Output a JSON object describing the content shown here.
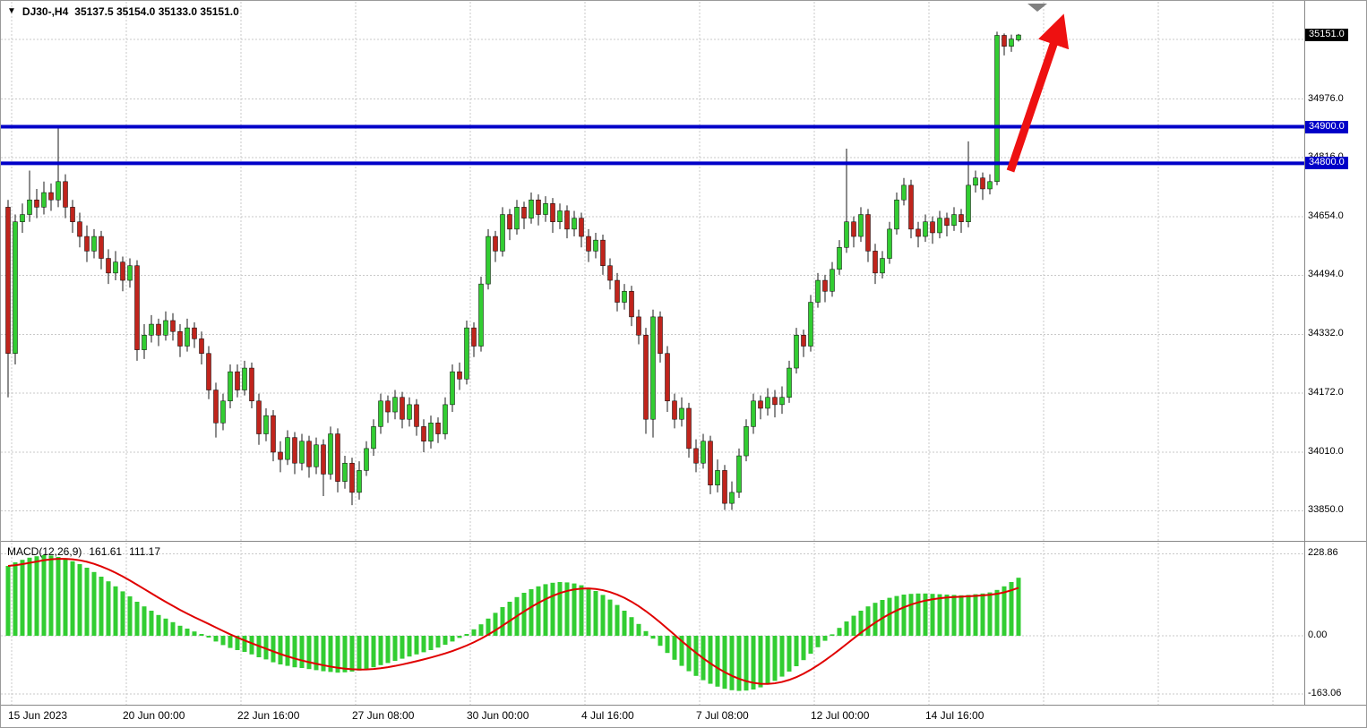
{
  "header": {
    "dropdown_icon": "▼",
    "symbol_period": "DJ30-,H4",
    "ohlc_text": "35137.5 35154.0 35133.0 35151.0"
  },
  "indicator": {
    "name": "MACD(12,26,9)",
    "value_main": "161.61",
    "value_signal": "111.17"
  },
  "colors": {
    "bull": "#32cd32",
    "bear": "#c0241c",
    "wick": "#1a1a1a",
    "body_outline": "#000000",
    "grid": "#c9c9c9",
    "hline": "#0000c8",
    "signal_line": "#e00000",
    "arrow": "#ee1111",
    "current_label_bg": "#000000",
    "level_label_bg": "#0000c8",
    "axis_text": "#000000",
    "separator": "#888888",
    "scroll_marker": "#808080",
    "background": "#ffffff"
  },
  "annotations": {
    "trend_arrow": {
      "shape": "arrow-up-right",
      "color": "#ee1111",
      "meaning": "projected breakout above 34800/34900 levels"
    },
    "scroll_marker": {
      "shape": "triangle-down",
      "color": "#808080"
    }
  },
  "chart_data": [
    {
      "type": "candlestick",
      "title": "DJ30-,H4",
      "x_tick_labels": [
        "15 Jun 2023",
        "20 Jun 00:00",
        "22 Jun 16:00",
        "27 Jun 08:00",
        "30 Jun 00:00",
        "4 Jul 16:00",
        "7 Jul 08:00",
        "12 Jul 00:00",
        "14 Jul 16:00"
      ],
      "y_ticks": [
        {
          "price": 34976,
          "label": "34976.0"
        },
        {
          "price": 34816,
          "label": "34816.0"
        },
        {
          "price": 34654,
          "label": "34654.0"
        },
        {
          "price": 34494,
          "label": "34494.0"
        },
        {
          "price": 34332,
          "label": "34332.0"
        },
        {
          "price": 34172,
          "label": "34172.0"
        },
        {
          "price": 34010,
          "label": "34010.0"
        },
        {
          "price": 33850,
          "label": "33850.0"
        }
      ],
      "grid_only_prices": [
        35139
      ],
      "hlines": [
        {
          "price": 34900,
          "label": "34900.0"
        },
        {
          "price": 34800,
          "label": "34800.0"
        }
      ],
      "current_price": 35151,
      "current_price_label": "35151.0",
      "ylim": [
        33775,
        35175
      ],
      "candles_ohlc": [
        [
          34680,
          34700,
          34160,
          34280
        ],
        [
          34280,
          34660,
          34250,
          34640
        ],
        [
          34640,
          34690,
          34610,
          34660
        ],
        [
          34660,
          34780,
          34640,
          34700
        ],
        [
          34700,
          34730,
          34650,
          34680
        ],
        [
          34680,
          34750,
          34660,
          34720
        ],
        [
          34720,
          34745,
          34670,
          34700
        ],
        [
          34700,
          34900,
          34680,
          34750
        ],
        [
          34750,
          34770,
          34650,
          34680
        ],
        [
          34680,
          34700,
          34610,
          34640
        ],
        [
          34640,
          34665,
          34570,
          34600
        ],
        [
          34600,
          34630,
          34530,
          34560
        ],
        [
          34560,
          34620,
          34540,
          34600
        ],
        [
          34600,
          34615,
          34510,
          34540
        ],
        [
          34540,
          34565,
          34470,
          34500
        ],
        [
          34500,
          34560,
          34480,
          34530
        ],
        [
          34530,
          34545,
          34450,
          34480
        ],
        [
          34480,
          34540,
          34460,
          34520
        ],
        [
          34520,
          34535,
          34260,
          34290
        ],
        [
          34290,
          34360,
          34265,
          34330
        ],
        [
          34330,
          34385,
          34310,
          34360
        ],
        [
          34360,
          34375,
          34300,
          34330
        ],
        [
          34330,
          34395,
          34315,
          34370
        ],
        [
          34370,
          34390,
          34315,
          34340
        ],
        [
          34340,
          34360,
          34270,
          34300
        ],
        [
          34300,
          34375,
          34285,
          34350
        ],
        [
          34350,
          34365,
          34295,
          34320
        ],
        [
          34320,
          34340,
          34250,
          34280
        ],
        [
          34280,
          34300,
          34155,
          34180
        ],
        [
          34180,
          34200,
          34050,
          34090
        ],
        [
          34090,
          34170,
          34070,
          34150
        ],
        [
          34150,
          34250,
          34130,
          34230
        ],
        [
          34230,
          34250,
          34160,
          34180
        ],
        [
          34180,
          34260,
          34165,
          34240
        ],
        [
          34240,
          34255,
          34130,
          34150
        ],
        [
          34150,
          34170,
          34030,
          34060
        ],
        [
          34060,
          34130,
          34040,
          34110
        ],
        [
          34110,
          34125,
          33985,
          34010
        ],
        [
          34010,
          34040,
          33955,
          33990
        ],
        [
          33990,
          34070,
          33975,
          34050
        ],
        [
          34050,
          34065,
          33950,
          33980
        ],
        [
          33980,
          34060,
          33960,
          34040
        ],
        [
          34040,
          34055,
          33940,
          33970
        ],
        [
          33970,
          34050,
          33950,
          34030
        ],
        [
          34030,
          34045,
          33890,
          33950
        ],
        [
          33950,
          34080,
          33935,
          34060
        ],
        [
          34060,
          34075,
          33900,
          33930
        ],
        [
          33930,
          34000,
          33910,
          33980
        ],
        [
          33980,
          33995,
          33865,
          33900
        ],
        [
          33900,
          33985,
          33880,
          33960
        ],
        [
          33960,
          34040,
          33945,
          34020
        ],
        [
          34020,
          34100,
          34000,
          34080
        ],
        [
          34080,
          34170,
          34060,
          34150
        ],
        [
          34150,
          34165,
          34090,
          34120
        ],
        [
          34120,
          34180,
          34100,
          34160
        ],
        [
          34160,
          34175,
          34075,
          34100
        ],
        [
          34100,
          34160,
          34080,
          34140
        ],
        [
          34140,
          34155,
          34055,
          34080
        ],
        [
          34080,
          34100,
          34010,
          34040
        ],
        [
          34040,
          34110,
          34020,
          34090
        ],
        [
          34090,
          34105,
          34035,
          34060
        ],
        [
          34060,
          34160,
          34045,
          34140
        ],
        [
          34140,
          34250,
          34120,
          34230
        ],
        [
          34230,
          34255,
          34180,
          34210
        ],
        [
          34210,
          34370,
          34195,
          34350
        ],
        [
          34350,
          34365,
          34270,
          34300
        ],
        [
          34300,
          34490,
          34285,
          34470
        ],
        [
          34470,
          34620,
          34455,
          34600
        ],
        [
          34600,
          34615,
          34530,
          34560
        ],
        [
          34560,
          34680,
          34545,
          34660
        ],
        [
          34660,
          34675,
          34590,
          34620
        ],
        [
          34620,
          34700,
          34605,
          34680
        ],
        [
          34680,
          34695,
          34620,
          34650
        ],
        [
          34650,
          34720,
          34635,
          34700
        ],
        [
          34700,
          34715,
          34630,
          34660
        ],
        [
          34660,
          34710,
          34640,
          34690
        ],
        [
          34690,
          34705,
          34610,
          34640
        ],
        [
          34640,
          34690,
          34620,
          34670
        ],
        [
          34670,
          34685,
          34595,
          34620
        ],
        [
          34620,
          34670,
          34600,
          34650
        ],
        [
          34650,
          34665,
          34570,
          34600
        ],
        [
          34600,
          34620,
          34530,
          34560
        ],
        [
          34560,
          34610,
          34540,
          34590
        ],
        [
          34590,
          34605,
          34495,
          34520
        ],
        [
          34520,
          34540,
          34455,
          34480
        ],
        [
          34480,
          34500,
          34395,
          34420
        ],
        [
          34420,
          34470,
          34400,
          34450
        ],
        [
          34450,
          34465,
          34355,
          34380
        ],
        [
          34380,
          34400,
          34305,
          34330
        ],
        [
          34330,
          34350,
          34060,
          34100
        ],
        [
          34100,
          34400,
          34050,
          34380
        ],
        [
          34380,
          34395,
          34255,
          34280
        ],
        [
          34280,
          34300,
          34120,
          34150
        ],
        [
          34150,
          34170,
          34075,
          34100
        ],
        [
          34100,
          34160,
          34080,
          34130
        ],
        [
          34130,
          34145,
          33995,
          34020
        ],
        [
          34020,
          34045,
          33955,
          33980
        ],
        [
          33980,
          34060,
          33965,
          34040
        ],
        [
          34040,
          34055,
          33895,
          33920
        ],
        [
          33920,
          33990,
          33900,
          33960
        ],
        [
          33960,
          33975,
          33852,
          33870
        ],
        [
          33870,
          33930,
          33852,
          33900
        ],
        [
          33900,
          34020,
          33885,
          34000
        ],
        [
          34000,
          34100,
          33985,
          34080
        ],
        [
          34080,
          34170,
          34060,
          34150
        ],
        [
          34150,
          34165,
          34100,
          34130
        ],
        [
          34130,
          34185,
          34110,
          34160
        ],
        [
          34160,
          34180,
          34105,
          34140
        ],
        [
          34140,
          34190,
          34115,
          34160
        ],
        [
          34160,
          34260,
          34145,
          34240
        ],
        [
          34240,
          34350,
          34225,
          34330
        ],
        [
          34330,
          34345,
          34270,
          34300
        ],
        [
          34300,
          34440,
          34285,
          34420
        ],
        [
          34420,
          34500,
          34405,
          34480
        ],
        [
          34480,
          34495,
          34420,
          34450
        ],
        [
          34450,
          34530,
          34435,
          34510
        ],
        [
          34510,
          34590,
          34495,
          34570
        ],
        [
          34570,
          34840,
          34555,
          34640
        ],
        [
          34640,
          34655,
          34570,
          34600
        ],
        [
          34600,
          34680,
          34585,
          34660
        ],
        [
          34660,
          34675,
          34530,
          34560
        ],
        [
          34560,
          34580,
          34470,
          34500
        ],
        [
          34500,
          34560,
          34485,
          34540
        ],
        [
          34540,
          34640,
          34525,
          34620
        ],
        [
          34620,
          34720,
          34605,
          34700
        ],
        [
          34700,
          34760,
          34685,
          34740
        ],
        [
          34740,
          34755,
          34595,
          34620
        ],
        [
          34620,
          34640,
          34570,
          34600
        ],
        [
          34600,
          34660,
          34585,
          34640
        ],
        [
          34640,
          34655,
          34580,
          34610
        ],
        [
          34610,
          34670,
          34595,
          34650
        ],
        [
          34650,
          34665,
          34600,
          34630
        ],
        [
          34630,
          34680,
          34615,
          34660
        ],
        [
          34660,
          34675,
          34610,
          34640
        ],
        [
          34640,
          34860,
          34625,
          34740
        ],
        [
          34740,
          34780,
          34720,
          34760
        ],
        [
          34760,
          34775,
          34700,
          34730
        ],
        [
          34730,
          34770,
          34715,
          34750
        ],
        [
          34750,
          35160,
          34740,
          35150
        ],
        [
          35150,
          35155,
          35095,
          35120
        ],
        [
          35120,
          35152,
          35105,
          35140
        ],
        [
          35137.5,
          35154.0,
          35133.0,
          35151.0
        ]
      ]
    },
    {
      "type": "bar",
      "title": "MACD(12,26,9)",
      "y_ticks": [
        {
          "value": 228.86,
          "label": "228.86"
        },
        {
          "value": 0,
          "label": "0.00"
        },
        {
          "value": -163.06,
          "label": "-163.06"
        }
      ],
      "ylim": [
        -190,
        255
      ],
      "values": [
        195,
        205,
        212,
        218,
        222,
        225,
        224,
        220,
        215,
        208,
        200,
        190,
        178,
        165,
        152,
        138,
        124,
        110,
        95,
        82,
        70,
        58,
        48,
        38,
        28,
        20,
        12,
        5,
        -5,
        -16,
        -26,
        -34,
        -40,
        -45,
        -52,
        -60,
        -66,
        -74,
        -80,
        -84,
        -88,
        -90,
        -93,
        -96,
        -99,
        -101,
        -103,
        -102,
        -100,
        -97,
        -93,
        -88,
        -82,
        -76,
        -70,
        -64,
        -58,
        -52,
        -46,
        -40,
        -33,
        -25,
        -16,
        -6,
        5,
        18,
        32,
        48,
        64,
        80,
        95,
        108,
        120,
        130,
        138,
        144,
        148,
        150,
        149,
        146,
        141,
        134,
        125,
        114,
        101,
        86,
        70,
        52,
        33,
        13,
        -8,
        -28,
        -48,
        -67,
        -84,
        -99,
        -112,
        -124,
        -134,
        -142,
        -148,
        -152,
        -154,
        -153,
        -150,
        -144,
        -136,
        -126,
        -114,
        -100,
        -85,
        -68,
        -50,
        -32,
        -14,
        4,
        22,
        40,
        56,
        70,
        82,
        92,
        100,
        106,
        111,
        115,
        117,
        118,
        118,
        117,
        116,
        115,
        114,
        113,
        114,
        116,
        118,
        121,
        128,
        138,
        150,
        162
      ]
    }
  ]
}
